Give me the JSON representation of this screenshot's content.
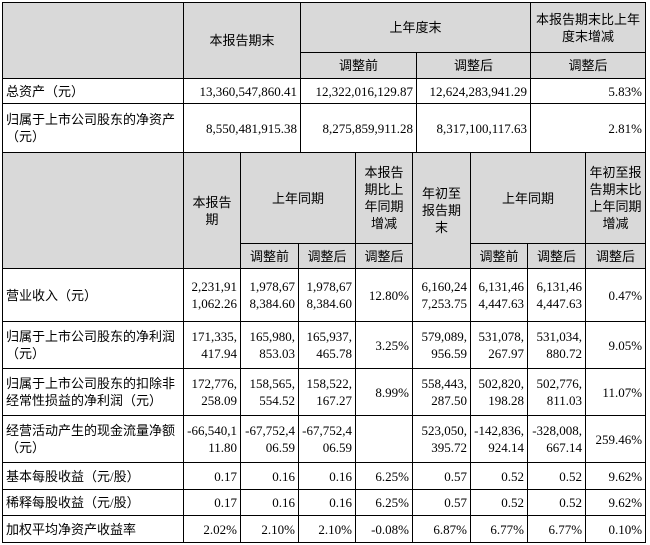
{
  "table1": {
    "header": {
      "row1": [
        "本报告期末",
        "上年度末",
        "本报告期末比上年度末增减"
      ],
      "row2": [
        "调整前",
        "调整后",
        "调整后"
      ]
    },
    "rows": [
      {
        "label": "总资产（元）",
        "values": [
          "13,360,547,860.41",
          "12,322,016,129.87",
          "12,624,283,941.29",
          "5.83%"
        ]
      },
      {
        "label": "归属于上市公司股东的净资产（元）",
        "values": [
          "8,550,481,915.38",
          "8,275,859,911.28",
          "8,317,100,117.63",
          "2.81%"
        ]
      }
    ]
  },
  "table2": {
    "header": {
      "row1": [
        "本报告期",
        "上年同期",
        "本报告期比上年同期增减",
        "年初至报告期末",
        "上年同期",
        "年初至报告期末比上年同期增减"
      ],
      "row2": [
        "调整前",
        "调整后",
        "调整后",
        "调整前",
        "调整后",
        "调整后"
      ]
    },
    "rows": [
      {
        "label": "营业收入（元）",
        "values": [
          "2,231,911,062.26",
          "1,978,678,384.60",
          "1,978,678,384.60",
          "12.80%",
          "6,160,247,253.75",
          "6,131,464,447.63",
          "6,131,464,447.63",
          "0.47%"
        ]
      },
      {
        "label": "归属于上市公司股东的净利润（元）",
        "values": [
          "171,335,417.94",
          "165,980,853.03",
          "165,937,465.78",
          "3.25%",
          "579,089,956.59",
          "531,078,267.97",
          "531,034,880.72",
          "9.05%"
        ]
      },
      {
        "label": "归属于上市公司股东的扣除非经常性损益的净利润（元）",
        "values": [
          "172,776,258.09",
          "158,565,554.52",
          "158,522,167.27",
          "8.99%",
          "558,443,287.50",
          "502,820,198.28",
          "502,776,811.03",
          "11.07%"
        ]
      },
      {
        "label": "经营活动产生的现金流量净额（元）",
        "values": [
          "-66,540,111.80",
          "-67,752,406.59",
          "-67,752,406.59",
          null,
          "523,050,395.72",
          "-142,836,924.14",
          "-328,008,667.14",
          "259.46%"
        ]
      },
      {
        "label": "基本每股收益（元/股）",
        "values": [
          "0.17",
          "0.16",
          "0.16",
          "6.25%",
          "0.57",
          "0.52",
          "0.52",
          "9.62%"
        ]
      },
      {
        "label": "稀释每股收益（元/股）",
        "values": [
          "0.17",
          "0.16",
          "0.16",
          "6.25%",
          "0.57",
          "0.52",
          "0.52",
          "9.62%"
        ]
      },
      {
        "label": "加权平均净资产收益率",
        "values": [
          "2.02%",
          "2.10%",
          "2.10%",
          "-0.08%",
          "6.87%",
          "6.77%",
          "6.77%",
          "0.10%"
        ]
      }
    ]
  }
}
